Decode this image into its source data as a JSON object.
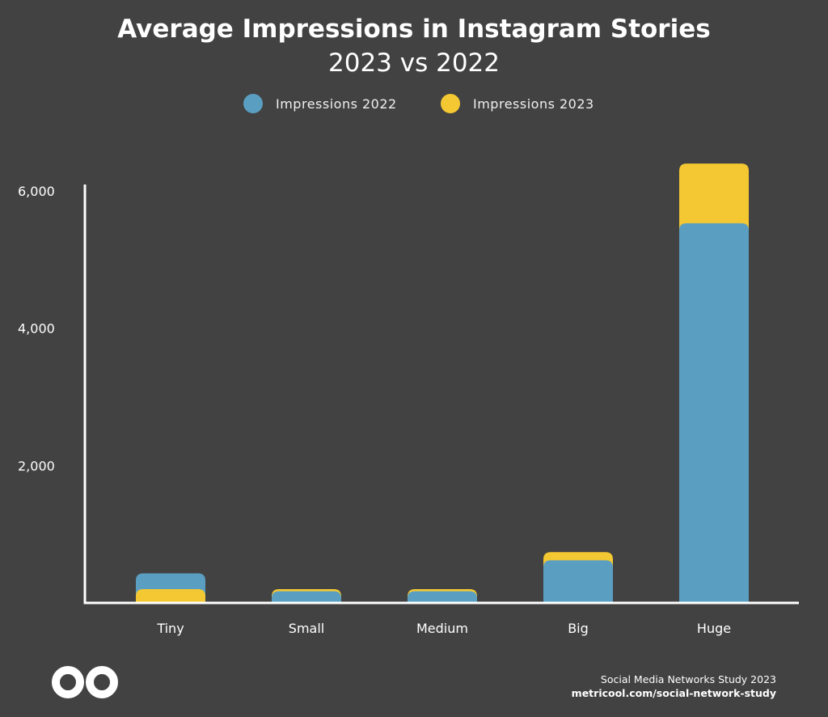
{
  "header": {
    "title": "Average Impressions in Instagram Stories",
    "subtitle": "2023 vs 2022"
  },
  "legend": [
    {
      "label": "Impressions 2022",
      "color": "#5a9fc1"
    },
    {
      "label": "Impressions 2023",
      "color": "#f4c832"
    }
  ],
  "chart_data": {
    "type": "bar",
    "stacking": "overlay",
    "categories": [
      "Tiny",
      "Small",
      "Medium",
      "Big",
      "Huge"
    ],
    "series": [
      {
        "name": "Impressions 2022",
        "color": "#5a9fc1",
        "values": [
          430,
          170,
          170,
          620,
          5530
        ]
      },
      {
        "name": "Impressions 2023",
        "color": "#f4c832",
        "values": [
          200,
          200,
          200,
          740,
          6400
        ]
      }
    ],
    "y_ticks": [
      {
        "value": 2000,
        "label": "2,000"
      },
      {
        "value": 4000,
        "label": "4,000"
      },
      {
        "value": 6000,
        "label": "6,000"
      }
    ],
    "ylim": [
      0,
      6100
    ],
    "grid": false,
    "legend_position": "top-center"
  },
  "footer": {
    "study": "Social Media Networks Study 2023",
    "url": "metricool.com/social-network-study"
  },
  "logo": {
    "icon": "infinity-logo-icon"
  }
}
